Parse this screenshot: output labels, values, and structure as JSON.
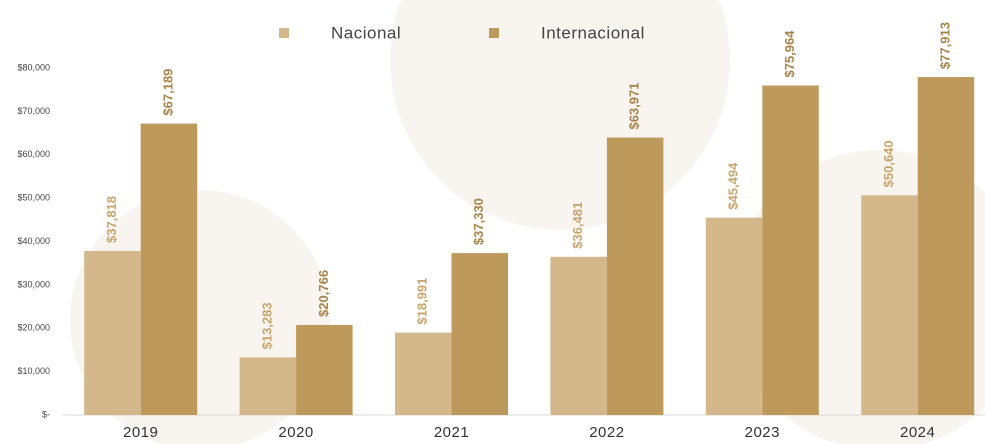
{
  "chart_data": {
    "type": "bar",
    "categories": [
      "2019",
      "2020",
      "2021",
      "2022",
      "2023",
      "2024"
    ],
    "series": [
      {
        "name": "Nacional",
        "color": "#d4b88c",
        "label_color": "#c9a56e",
        "values": [
          37818,
          13283,
          18991,
          36481,
          45494,
          50640
        ],
        "value_labels": [
          "$37,818",
          "$13,283",
          "$18,991",
          "$36,481",
          "$45,494",
          "$50,640"
        ]
      },
      {
        "name": "Internacional",
        "color": "#bd9a5c",
        "label_color": "#a8844a",
        "values": [
          67189,
          20766,
          37330,
          63971,
          75964,
          77913
        ],
        "value_labels": [
          "$67,189",
          "$20,766",
          "$37,330",
          "$63,971",
          "$75,964",
          "$77,913"
        ]
      }
    ],
    "ylim": [
      0,
      80000
    ],
    "yticks": [
      {
        "value": 0,
        "label": "$-"
      },
      {
        "value": 10000,
        "label": "$10,000"
      },
      {
        "value": 20000,
        "label": "$20,000"
      },
      {
        "value": 30000,
        "label": "$30,000"
      },
      {
        "value": 40000,
        "label": "$40,000"
      },
      {
        "value": 50000,
        "label": "$50,000"
      },
      {
        "value": 60000,
        "label": "$60,000"
      },
      {
        "value": 70000,
        "label": "$70,000"
      },
      {
        "value": 80000,
        "label": "$80,000"
      }
    ],
    "legend": "top"
  }
}
